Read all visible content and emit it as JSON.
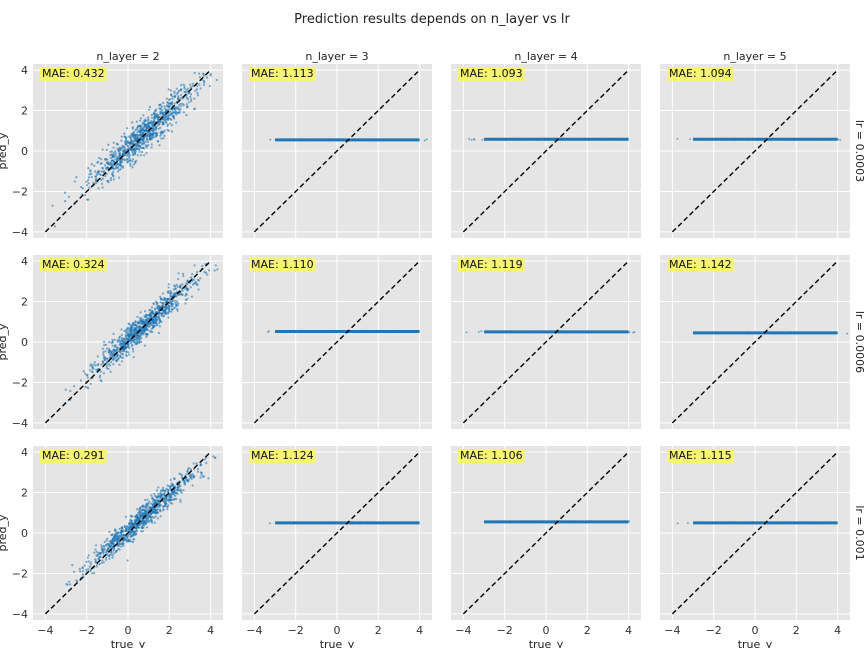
{
  "chart_data": {
    "type": "scatter",
    "title": "Prediction results depends on n_layer vs lr",
    "xlabel": "true_y",
    "ylabel": "pred_y",
    "xlim": [
      -4.6,
      4.6
    ],
    "ylim": [
      -4.3,
      4.3
    ],
    "xticks": [
      -4,
      -2,
      0,
      2,
      4
    ],
    "yticks": [
      -4,
      -2,
      0,
      2,
      4
    ],
    "grid": true,
    "background": "#e5e5e5",
    "point_color": "#1f77b4",
    "reference_line": {
      "color": "#000000",
      "style": "dashed",
      "from": [
        -4,
        -4
      ],
      "to": [
        4,
        4
      ]
    },
    "annotation_bg": "#f5f572",
    "columns": [
      "n_layer = 2",
      "n_layer = 3",
      "n_layer = 4",
      "n_layer = 5"
    ],
    "rows": [
      "lr = 0.0003",
      "lr = 0.0006",
      "lr = 0.001"
    ],
    "panels": [
      [
        {
          "mae": "MAE: 0.432",
          "pattern": "diagonal",
          "spread": 0.42,
          "const_y": null
        },
        {
          "mae": "MAE: 1.113",
          "pattern": "constant",
          "spread": 0,
          "const_y": 0.55
        },
        {
          "mae": "MAE: 1.093",
          "pattern": "constant",
          "spread": 0,
          "const_y": 0.58
        },
        {
          "mae": "MAE: 1.094",
          "pattern": "constant",
          "spread": 0,
          "const_y": 0.58
        }
      ],
      [
        {
          "mae": "MAE: 0.324",
          "pattern": "diagonal",
          "spread": 0.33,
          "const_y": null
        },
        {
          "mae": "MAE: 1.110",
          "pattern": "constant",
          "spread": 0,
          "const_y": 0.52
        },
        {
          "mae": "MAE: 1.119",
          "pattern": "constant",
          "spread": 0,
          "const_y": 0.5
        },
        {
          "mae": "MAE: 1.142",
          "pattern": "constant",
          "spread": 0,
          "const_y": 0.45
        }
      ],
      [
        {
          "mae": "MAE: 0.291",
          "pattern": "diagonal",
          "spread": 0.3,
          "const_y": null
        },
        {
          "mae": "MAE: 1.124",
          "pattern": "constant",
          "spread": 0,
          "const_y": 0.5
        },
        {
          "mae": "MAE: 1.106",
          "pattern": "constant",
          "spread": 0,
          "const_y": 0.55
        },
        {
          "mae": "MAE: 1.115",
          "pattern": "constant",
          "spread": 0,
          "const_y": 0.5
        }
      ]
    ]
  }
}
